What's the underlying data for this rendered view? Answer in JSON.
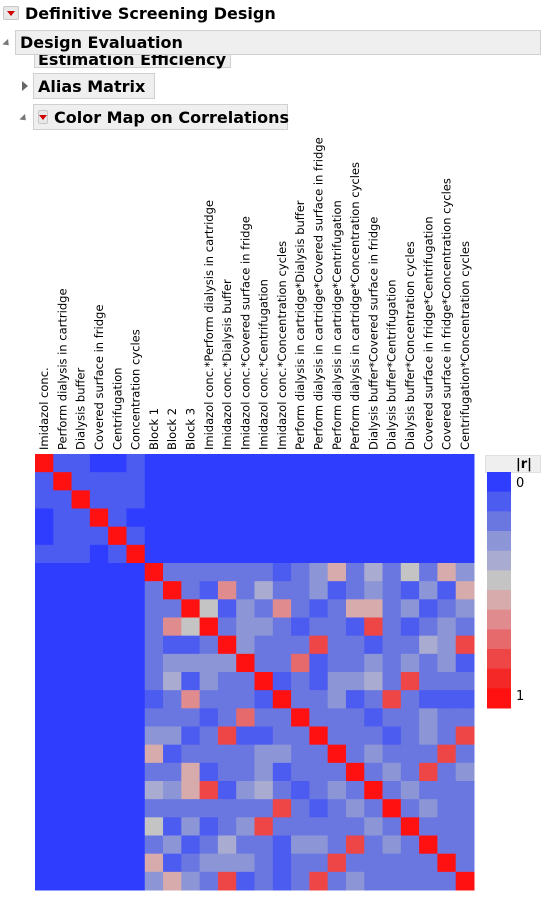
{
  "outline": {
    "top_title": "Definitive Screening Design",
    "design_evaluation": "Design Evaluation",
    "estimation_efficiency": "Estimation Efficiency",
    "alias_matrix": "Alias Matrix",
    "color_map": "Color Map on Correlations"
  },
  "legend": {
    "title": "|r|",
    "min_label": "0",
    "max_label": "1",
    "colors": [
      "#2f3dff",
      "#4c5bf0",
      "#6b77e0",
      "#8c96d6",
      "#a9acd0",
      "#c4c4c4",
      "#d7aaac",
      "#e08c8e",
      "#e66a6c",
      "#ee4647",
      "#f52828",
      "#ff1111"
    ]
  },
  "chart_data": {
    "type": "heatmap",
    "labels": [
      "Imidazol conc.",
      "Perform dialysis in cartridge",
      "Dialysis buffer",
      "Covered surface in fridge",
      "Centrifugation",
      "Concentration cycles",
      "Block 1",
      "Block 2",
      "Block 3",
      "Imidazol conc.*Perform dialysis in cartridge",
      "Imidazol conc.*Dialysis buffer",
      "Imidazol conc.*Covered surface in fridge",
      "Imidazol conc.*Centrifugation",
      "Imidazol conc.*Concentration cycles",
      "Perform dialysis in cartridge*Dialysis buffer",
      "Perform dialysis in cartridge*Covered surface in fridge",
      "Perform dialysis in cartridge*Centrifugation",
      "Perform dialysis in cartridge*Concentration cycles",
      "Dialysis buffer*Covered surface in fridge",
      "Dialysis buffer*Centrifugation",
      "Dialysis buffer*Concentration cycles",
      "Covered surface in fridge*Centrifugation",
      "Covered surface in fridge*Concentration cycles",
      "Centrifugation*Concentration cycles"
    ],
    "value_range": [
      0,
      1
    ],
    "matrix": [
      [
        1,
        0.1,
        0.1,
        0,
        0,
        0.1,
        0,
        0,
        0,
        0,
        0,
        0,
        0,
        0,
        0,
        0,
        0,
        0,
        0,
        0,
        0,
        0,
        0,
        0
      ],
      [
        0.1,
        1,
        0.1,
        0.1,
        0.1,
        0.1,
        0,
        0,
        0,
        0,
        0,
        0,
        0,
        0,
        0,
        0,
        0,
        0,
        0,
        0,
        0,
        0,
        0,
        0
      ],
      [
        0.1,
        0.1,
        1,
        0.1,
        0.1,
        0.1,
        0,
        0,
        0,
        0,
        0,
        0,
        0,
        0,
        0,
        0,
        0,
        0,
        0,
        0,
        0,
        0,
        0,
        0
      ],
      [
        0,
        0.1,
        0.1,
        1,
        0.1,
        0,
        0,
        0,
        0,
        0,
        0,
        0,
        0,
        0,
        0,
        0,
        0,
        0,
        0,
        0,
        0,
        0,
        0,
        0
      ],
      [
        0,
        0.1,
        0.1,
        0.1,
        1,
        0.1,
        0,
        0,
        0,
        0,
        0,
        0,
        0,
        0,
        0,
        0,
        0,
        0,
        0,
        0,
        0,
        0,
        0,
        0
      ],
      [
        0.1,
        0.1,
        0.1,
        0,
        0.1,
        1,
        0,
        0,
        0,
        0,
        0,
        0,
        0,
        0,
        0,
        0,
        0,
        0,
        0,
        0,
        0,
        0,
        0,
        0
      ],
      [
        0,
        0,
        0,
        0,
        0,
        0,
        1,
        0.2,
        0.2,
        0.15,
        0.15,
        0.15,
        0.2,
        0.1,
        0.15,
        0.3,
        0.55,
        0.2,
        0.35,
        0.15,
        0.45,
        0.2,
        0.5,
        0.3
      ],
      [
        0,
        0,
        0,
        0,
        0,
        0,
        0.2,
        1,
        0.2,
        0.1,
        0.6,
        0.2,
        0.4,
        0.2,
        0.2,
        0.3,
        0.1,
        0.2,
        0.3,
        0.2,
        0.1,
        0.3,
        0.1,
        0.5
      ],
      [
        0,
        0,
        0,
        0,
        0,
        0,
        0.2,
        0.2,
        1,
        0.45,
        0.1,
        0.3,
        0.15,
        0.6,
        0.2,
        0.1,
        0.2,
        0.5,
        0.55,
        0.2,
        0.3,
        0.1,
        0.2,
        0.3
      ],
      [
        0,
        0,
        0,
        0,
        0,
        0,
        0.15,
        0.6,
        0.45,
        1,
        0.2,
        0.3,
        0.3,
        0.2,
        0.1,
        0.2,
        0.2,
        0.1,
        0.8,
        0.2,
        0.1,
        0.2,
        0.3,
        0.2
      ],
      [
        0,
        0,
        0,
        0,
        0,
        0,
        0.15,
        0.1,
        0.1,
        0.2,
        1,
        0.3,
        0.2,
        0.2,
        0.2,
        0.8,
        0.2,
        0.2,
        0.1,
        0.2,
        0.2,
        0.4,
        0.3,
        0.8
      ],
      [
        0,
        0,
        0,
        0,
        0,
        0,
        0.15,
        0.3,
        0.3,
        0.3,
        0.3,
        1,
        0.2,
        0.2,
        0.7,
        0.1,
        0.2,
        0.2,
        0.3,
        0.2,
        0.3,
        0.2,
        0.3,
        0.1
      ],
      [
        0,
        0,
        0,
        0,
        0,
        0,
        0.2,
        0.4,
        0.1,
        0.3,
        0.2,
        0.2,
        1,
        0.1,
        0.2,
        0.1,
        0.3,
        0.3,
        0.4,
        0.2,
        0.8,
        0.2,
        0.2,
        0.2
      ],
      [
        0,
        0,
        0,
        0,
        0,
        0,
        0.1,
        0.2,
        0.6,
        0.2,
        0.2,
        0.2,
        0.1,
        1,
        0.2,
        0.2,
        0.3,
        0.1,
        0.2,
        0.8,
        0.2,
        0.1,
        0.1,
        0.1
      ],
      [
        0,
        0,
        0,
        0,
        0,
        0,
        0.15,
        0.2,
        0.2,
        0.1,
        0.2,
        0.7,
        0.2,
        0.2,
        1,
        0.2,
        0.2,
        0.2,
        0.1,
        0.2,
        0.2,
        0.3,
        0.2,
        0.2
      ],
      [
        0,
        0,
        0,
        0,
        0,
        0,
        0.3,
        0.3,
        0.1,
        0.2,
        0.8,
        0.1,
        0.1,
        0.2,
        0.2,
        1,
        0.2,
        0.2,
        0.2,
        0.1,
        0.2,
        0.3,
        0.2,
        0.8
      ],
      [
        0,
        0,
        0,
        0,
        0,
        0,
        0.55,
        0.1,
        0.2,
        0.2,
        0.2,
        0.2,
        0.3,
        0.3,
        0.2,
        0.2,
        1,
        0.2,
        0.3,
        0.2,
        0.2,
        0.2,
        0.8,
        0.2
      ],
      [
        0,
        0,
        0,
        0,
        0,
        0,
        0.2,
        0.2,
        0.5,
        0.1,
        0.2,
        0.2,
        0.3,
        0.1,
        0.2,
        0.2,
        0.2,
        1,
        0.2,
        0.3,
        0.2,
        0.8,
        0.2,
        0.3
      ],
      [
        0,
        0,
        0,
        0,
        0,
        0,
        0.35,
        0.3,
        0.55,
        0.8,
        0.1,
        0.3,
        0.4,
        0.2,
        0.1,
        0.2,
        0.3,
        0.2,
        1,
        0.2,
        0.3,
        0.2,
        0.2,
        0.2
      ],
      [
        0,
        0,
        0,
        0,
        0,
        0,
        0.15,
        0.2,
        0.2,
        0.2,
        0.2,
        0.2,
        0.2,
        0.8,
        0.2,
        0.1,
        0.2,
        0.3,
        0.2,
        1,
        0.2,
        0.3,
        0.2,
        0.2
      ],
      [
        0,
        0,
        0,
        0,
        0,
        0,
        0.45,
        0.1,
        0.3,
        0.1,
        0.2,
        0.3,
        0.8,
        0.2,
        0.2,
        0.2,
        0.2,
        0.2,
        0.3,
        0.2,
        1,
        0.2,
        0.2,
        0.2
      ],
      [
        0,
        0,
        0,
        0,
        0,
        0,
        0.2,
        0.3,
        0.1,
        0.2,
        0.4,
        0.2,
        0.2,
        0.1,
        0.3,
        0.3,
        0.2,
        0.8,
        0.2,
        0.3,
        0.2,
        1,
        0.2,
        0.2
      ],
      [
        0,
        0,
        0,
        0,
        0,
        0,
        0.5,
        0.1,
        0.2,
        0.3,
        0.3,
        0.3,
        0.2,
        0.1,
        0.2,
        0.2,
        0.8,
        0.2,
        0.2,
        0.2,
        0.2,
        0.2,
        1,
        0.2
      ],
      [
        0,
        0,
        0,
        0,
        0,
        0,
        0.3,
        0.5,
        0.3,
        0.2,
        0.8,
        0.1,
        0.2,
        0.1,
        0.2,
        0.8,
        0.2,
        0.3,
        0.2,
        0.2,
        0.2,
        0.2,
        0.2,
        1
      ]
    ]
  }
}
